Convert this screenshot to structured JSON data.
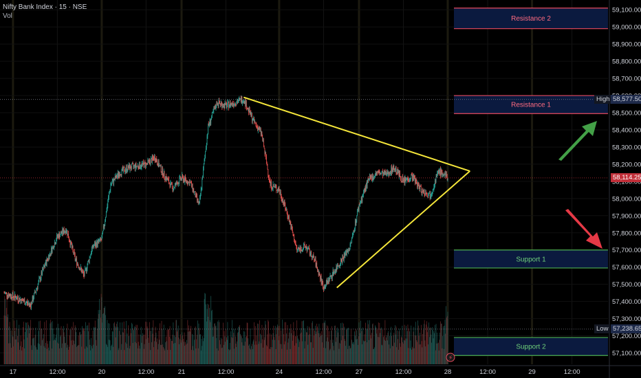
{
  "header": {
    "symbol_line": "Nifty Bank Index · 15 · NSE",
    "volume_label": "Vol"
  },
  "colors": {
    "background": "#000000",
    "up": "#26a69a",
    "down": "#ef5350",
    "triangle": "#f5e63a",
    "resistance_fill": "#0b1a3f",
    "resistance_line": "#e84a5f",
    "support_fill": "#0b1a3f",
    "support_line": "#4caf50",
    "green_arrow": "#43a047",
    "red_arrow": "#e53946"
  },
  "chart_data": {
    "type": "candlestick",
    "y_axis": {
      "range": [
        57050,
        59125
      ],
      "ticks": [
        "59,100.00",
        "59,000.00",
        "58,900.00",
        "58,800.00",
        "58,700.00",
        "58,600.00",
        "58,500.00",
        "58,400.00",
        "58,300.00",
        "58,200.00",
        "58,100.00",
        "58,000.00",
        "57,900.00",
        "57,800.00",
        "57,700.00",
        "57,600.00",
        "57,500.00",
        "57,400.00",
        "57,300.00",
        "57,200.00",
        "57,100.00"
      ]
    },
    "x_axis": {
      "labels": [
        {
          "label": "17",
          "bar": 2
        },
        {
          "label": "12:00",
          "bar": 12
        },
        {
          "label": "20",
          "bar": 22
        },
        {
          "label": "12:00",
          "bar": 32
        },
        {
          "label": "21",
          "bar": 40
        },
        {
          "label": "12:00",
          "bar": 50
        },
        {
          "label": "24",
          "bar": 62
        },
        {
          "label": "12:00",
          "bar": 72
        },
        {
          "label": "27",
          "bar": 80
        },
        {
          "label": "12:00",
          "bar": 90
        },
        {
          "label": "28",
          "bar": 100
        },
        {
          "label": "12:00",
          "bar": 109
        },
        {
          "label": "29",
          "bar": 119
        },
        {
          "label": "12:00",
          "bar": 128
        }
      ]
    },
    "price_path": [
      [
        0,
        57450
      ],
      [
        3,
        57420
      ],
      [
        6,
        57380
      ],
      [
        9,
        57600
      ],
      [
        12,
        57780
      ],
      [
        14,
        57820
      ],
      [
        16,
        57650
      ],
      [
        18,
        57550
      ],
      [
        20,
        57720
      ],
      [
        22,
        57760
      ],
      [
        24,
        58080
      ],
      [
        26,
        58150
      ],
      [
        28,
        58180
      ],
      [
        30,
        58190
      ],
      [
        32,
        58200
      ],
      [
        34,
        58240
      ],
      [
        36,
        58140
      ],
      [
        38,
        58060
      ],
      [
        40,
        58120
      ],
      [
        42,
        58090
      ],
      [
        44,
        57960
      ],
      [
        46,
        58420
      ],
      [
        48,
        58560
      ],
      [
        50,
        58540
      ],
      [
        52,
        58560
      ],
      [
        54,
        58580
      ],
      [
        56,
        58460
      ],
      [
        58,
        58380
      ],
      [
        60,
        58080
      ],
      [
        62,
        58050
      ],
      [
        64,
        57900
      ],
      [
        66,
        57700
      ],
      [
        68,
        57720
      ],
      [
        70,
        57640
      ],
      [
        72,
        57480
      ],
      [
        74,
        57560
      ],
      [
        76,
        57640
      ],
      [
        78,
        57720
      ],
      [
        80,
        57960
      ],
      [
        82,
        58100
      ],
      [
        84,
        58150
      ],
      [
        86,
        58140
      ],
      [
        88,
        58180
      ],
      [
        90,
        58100
      ],
      [
        92,
        58130
      ],
      [
        94,
        58050
      ],
      [
        96,
        58020
      ],
      [
        98,
        58160
      ],
      [
        100,
        58120
      ]
    ],
    "last_price": "58,114.25",
    "high": {
      "label": "High",
      "value": "58,577.50",
      "price": 58577.5
    },
    "low": {
      "label": "Low",
      "value": "57,238.65",
      "price": 57238.65
    },
    "zones": [
      {
        "label": "Resistance 2",
        "top": 59110,
        "bottom": 58990,
        "kind": "resistance"
      },
      {
        "label": "Resistance 1",
        "top": 58600,
        "bottom": 58495,
        "kind": "resistance"
      },
      {
        "label": "Support 1",
        "top": 57700,
        "bottom": 57595,
        "kind": "support"
      },
      {
        "label": "Support 2",
        "top": 57190,
        "bottom": 57085,
        "kind": "support"
      }
    ],
    "triangle": {
      "upper_start": {
        "bar": 54,
        "price": 58590
      },
      "upper_end": {
        "bar": 105,
        "price": 58160
      },
      "lower_start": {
        "bar": 75,
        "price": 57480
      },
      "lower_end": {
        "bar": 105,
        "price": 58160
      }
    }
  }
}
